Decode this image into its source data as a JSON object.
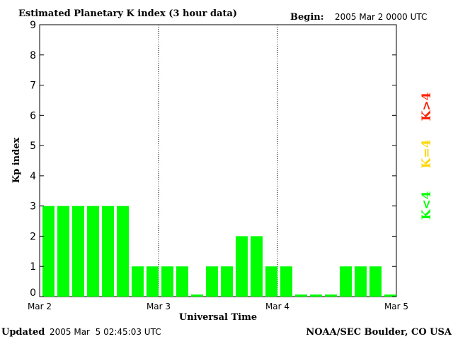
{
  "header": {
    "title": "Estimated Planetary K index (3 hour data)",
    "begin_label": "Begin:",
    "begin_value": "2005 Mar 2 0000 UTC"
  },
  "footer": {
    "updated_label": "Updated",
    "updated_value": "2005 Mar  5 02:45:03 UTC",
    "source": "NOAA/SEC Boulder, CO USA"
  },
  "legend": {
    "high": "K>4",
    "equal": "K=4",
    "low": "K<4"
  },
  "colors": {
    "low": "#00ff00",
    "equal": "#ffd700",
    "high": "#ff2000",
    "axis": "#000000"
  },
  "chart_data": {
    "type": "bar",
    "title": "Estimated Planetary K index (3 hour data)",
    "xlabel": "Universal Time",
    "ylabel": "Kp index",
    "ylim": [
      0,
      9
    ],
    "yticks": [
      0,
      1,
      2,
      3,
      4,
      5,
      6,
      7,
      8,
      9
    ],
    "x_tick_labels": [
      "Mar 2",
      "Mar 3",
      "Mar 4",
      "Mar 5"
    ],
    "day_separators": true,
    "interval_hours": 3,
    "values": [
      3,
      3,
      3,
      3,
      3,
      3,
      1,
      1,
      1,
      1,
      0,
      1,
      1,
      2,
      2,
      1,
      1,
      0,
      0,
      0,
      1,
      1,
      1,
      0
    ]
  }
}
